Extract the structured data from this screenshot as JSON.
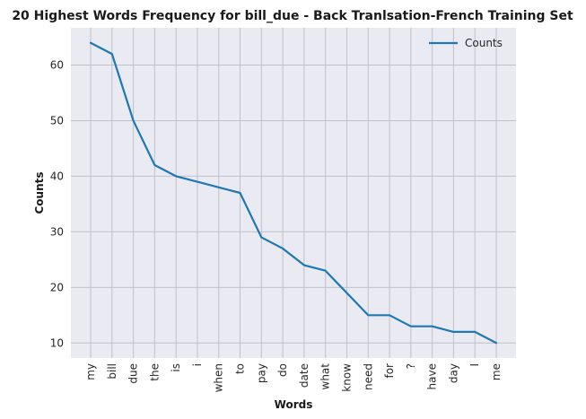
{
  "chart_data": {
    "type": "line",
    "title": "20 Highest Words Frequency for bill_due - Back Tranlsation-French Training Set",
    "xlabel": "Words",
    "ylabel": "Counts",
    "categories": [
      "my",
      "bill",
      "due",
      "the",
      "is",
      "i",
      "when",
      "to",
      "pay",
      "do",
      "date",
      "what",
      "know",
      "need",
      "for",
      "?",
      "have",
      "day",
      "I",
      "me"
    ],
    "series": [
      {
        "name": "Counts",
        "values": [
          64,
          62,
          50,
          42,
          40,
          39,
          38,
          37,
          29,
          27,
          24,
          23,
          19,
          15,
          15,
          13,
          13,
          12,
          12,
          10
        ]
      }
    ],
    "ylim": [
      7.3,
      66.7
    ],
    "yticks": [
      10,
      20,
      30,
      40,
      50,
      60
    ],
    "grid": true,
    "legend": "upper right",
    "colors": {
      "line": "#1f77b4",
      "background": "#eaeaf2",
      "grid": "#c0c0c8"
    }
  }
}
